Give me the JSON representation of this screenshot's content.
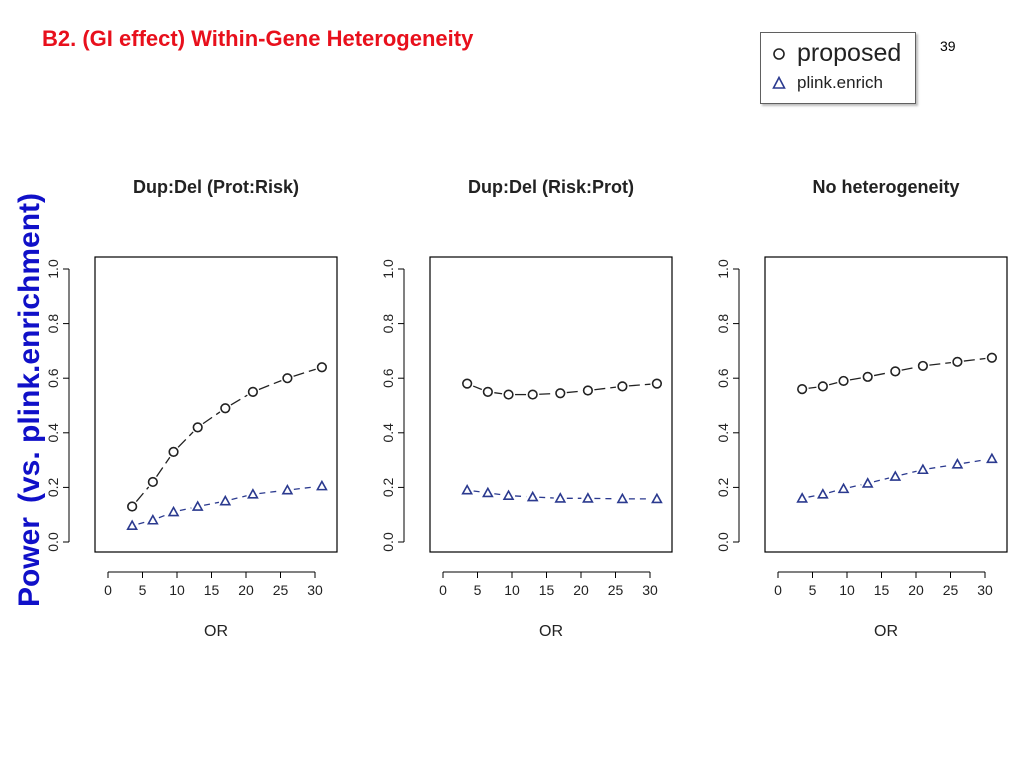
{
  "slide": {
    "title": "B2. (GI effect) Within-Gene Heterogeneity",
    "page_number": "39",
    "ylabel_part1": "Power",
    "ylabel_part2": "(vs. plink.enrichment)"
  },
  "legend": {
    "items": [
      {
        "label": "proposed",
        "marker": "circle",
        "color": "#222222"
      },
      {
        "label": "plink.enrich",
        "marker": "triangle",
        "color": "#2b3a8f"
      }
    ]
  },
  "colors": {
    "title": "#e8101c",
    "ylabel": "#1010c8",
    "proposed": "#222222",
    "plink": "#2b3a8f"
  },
  "chart_data": [
    {
      "type": "line",
      "title": "Dup:Del (Prot:Risk)",
      "xlabel": "OR",
      "ylabel": "",
      "xlim": [
        0,
        32
      ],
      "ylim": [
        0,
        1
      ],
      "xticks": [
        0,
        5,
        10,
        15,
        20,
        25,
        30
      ],
      "yticks": [
        "0.0",
        "0.2",
        "0.4",
        "0.6",
        "0.8",
        "1.0"
      ],
      "x": [
        3.5,
        6.5,
        9.5,
        13,
        17,
        21,
        26,
        31
      ],
      "series": [
        {
          "name": "proposed",
          "marker": "circle",
          "linestyle": "longdash",
          "color": "#222222",
          "values": [
            0.13,
            0.22,
            0.33,
            0.42,
            0.49,
            0.55,
            0.6,
            0.64
          ]
        },
        {
          "name": "plink.enrich",
          "marker": "triangle",
          "linestyle": "dash",
          "color": "#2b3a8f",
          "values": [
            0.06,
            0.08,
            0.11,
            0.13,
            0.15,
            0.175,
            0.19,
            0.205
          ]
        }
      ],
      "grid": false
    },
    {
      "type": "line",
      "title": "Dup:Del (Risk:Prot)",
      "xlabel": "OR",
      "ylabel": "",
      "xlim": [
        0,
        32
      ],
      "ylim": [
        0,
        1
      ],
      "xticks": [
        0,
        5,
        10,
        15,
        20,
        25,
        30
      ],
      "yticks": [
        "0.0",
        "0.2",
        "0.4",
        "0.6",
        "0.8",
        "1.0"
      ],
      "x": [
        3.5,
        6.5,
        9.5,
        13,
        17,
        21,
        26,
        31
      ],
      "series": [
        {
          "name": "proposed",
          "marker": "circle",
          "linestyle": "longdash",
          "color": "#222222",
          "values": [
            0.58,
            0.55,
            0.54,
            0.54,
            0.545,
            0.555,
            0.57,
            0.58
          ]
        },
        {
          "name": "plink.enrich",
          "marker": "triangle",
          "linestyle": "dash",
          "color": "#2b3a8f",
          "values": [
            0.19,
            0.18,
            0.17,
            0.165,
            0.16,
            0.16,
            0.158,
            0.158
          ]
        }
      ],
      "grid": false
    },
    {
      "type": "line",
      "title": "No heterogeneity",
      "xlabel": "OR",
      "ylabel": "",
      "xlim": [
        0,
        32
      ],
      "ylim": [
        0,
        1
      ],
      "xticks": [
        0,
        5,
        10,
        15,
        20,
        25,
        30
      ],
      "yticks": [
        "0.0",
        "0.2",
        "0.4",
        "0.6",
        "0.8",
        "1.0"
      ],
      "x": [
        3.5,
        6.5,
        9.5,
        13,
        17,
        21,
        26,
        31
      ],
      "series": [
        {
          "name": "proposed",
          "marker": "circle",
          "linestyle": "longdash",
          "color": "#222222",
          "values": [
            0.56,
            0.57,
            0.59,
            0.605,
            0.625,
            0.645,
            0.66,
            0.675
          ]
        },
        {
          "name": "plink.enrich",
          "marker": "triangle",
          "linestyle": "dash",
          "color": "#2b3a8f",
          "values": [
            0.16,
            0.175,
            0.195,
            0.215,
            0.24,
            0.265,
            0.285,
            0.305
          ]
        }
      ],
      "grid": false
    }
  ]
}
